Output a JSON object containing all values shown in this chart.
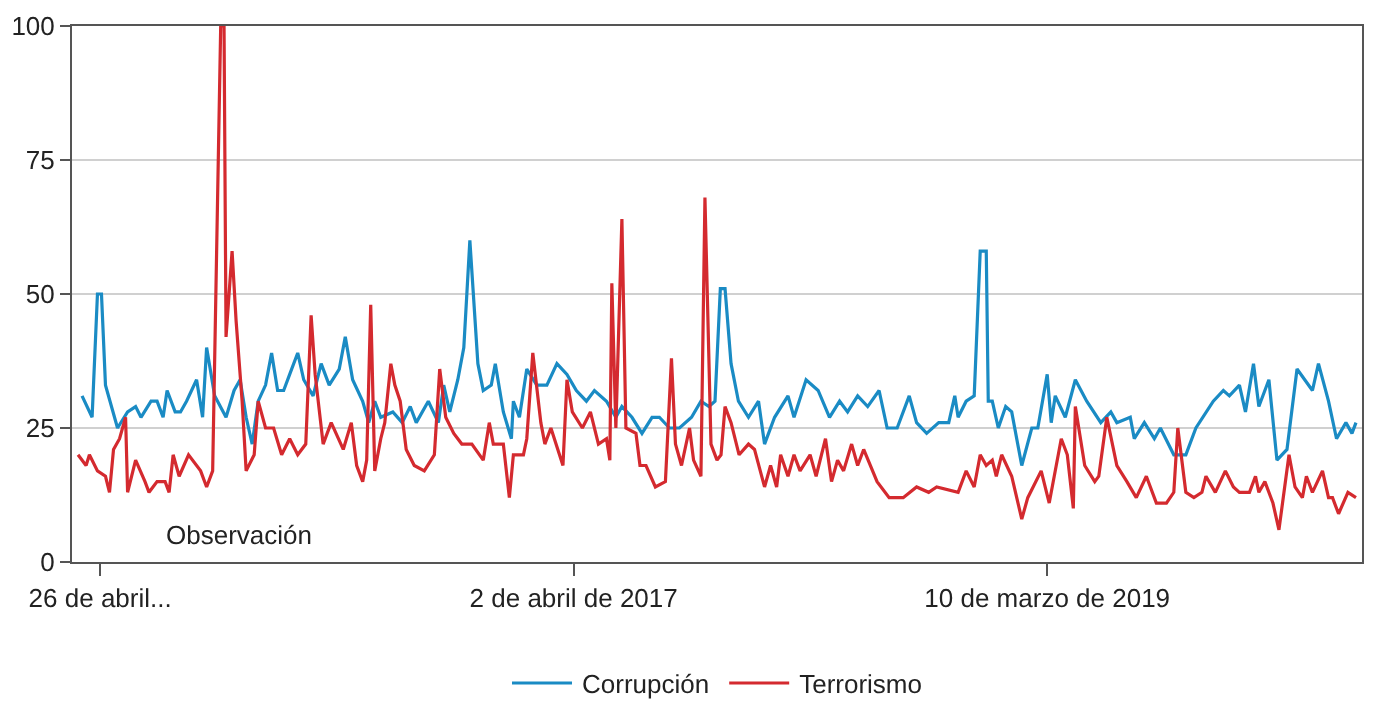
{
  "chart_data": {
    "type": "line",
    "xlim": [
      "2015-03-15",
      "2020-06-22"
    ],
    "xticks": [
      {
        "value": "2015-04-26",
        "label": "26 de abril..."
      },
      {
        "value": "2017-04-02",
        "label": "2 de abril de 2017"
      },
      {
        "value": "2019-03-10",
        "label": "10 de marzo de 2019"
      }
    ],
    "ylim": [
      0,
      100
    ],
    "yticks": [
      0,
      25,
      50,
      75,
      100
    ],
    "grid": "y",
    "legend": "bottom",
    "marker": "none",
    "line_style": "solid",
    "annotations": [
      "Observación"
    ],
    "series": [
      {
        "name": "Corrupción",
        "color": "#1a8bc4",
        "x": [
          "2015-03-30",
          "2015-04-14",
          "2015-04-22",
          "2015-04-28",
          "2015-05-04",
          "2015-05-22",
          "2015-06-06",
          "2015-06-18",
          "2015-06-26",
          "2015-07-11",
          "2015-07-20",
          "2015-07-29",
          "2015-08-04",
          "2015-08-16",
          "2015-08-24",
          "2015-09-02",
          "2015-09-17",
          "2015-09-26",
          "2015-10-02",
          "2015-10-14",
          "2015-10-31",
          "2015-11-12",
          "2015-11-21",
          "2015-11-30",
          "2015-12-09",
          "2015-12-18",
          "2015-12-29",
          "2016-01-07",
          "2016-01-16",
          "2016-01-25",
          "2016-02-03",
          "2016-02-15",
          "2016-02-24",
          "2016-03-09",
          "2016-03-21",
          "2016-04-02",
          "2016-04-17",
          "2016-04-26",
          "2016-05-07",
          "2016-05-22",
          "2016-05-31",
          "2016-06-09",
          "2016-06-18",
          "2016-07-06",
          "2016-07-20",
          "2016-08-01",
          "2016-08-10",
          "2016-08-28",
          "2016-09-12",
          "2016-09-20",
          "2016-09-29",
          "2016-10-11",
          "2016-10-20",
          "2016-10-29",
          "2016-11-10",
          "2016-11-18",
          "2016-11-30",
          "2016-12-06",
          "2016-12-18",
          "2016-12-30",
          "2017-01-02",
          "2017-01-11",
          "2017-01-22",
          "2017-02-06",
          "2017-02-21",
          "2017-03-08",
          "2017-03-23",
          "2017-04-06",
          "2017-04-21",
          "2017-05-03",
          "2017-05-21",
          "2017-06-04",
          "2017-06-13",
          "2017-06-28",
          "2017-07-13",
          "2017-07-28",
          "2017-08-08",
          "2017-08-23",
          "2017-09-07",
          "2017-09-25",
          "2017-10-09",
          "2017-10-21",
          "2017-10-30",
          "2017-11-07",
          "2017-11-14",
          "2017-11-23",
          "2017-12-04",
          "2017-12-19",
          "2018-01-03",
          "2018-01-12",
          "2018-01-27",
          "2018-02-16",
          "2018-02-25",
          "2018-03-15",
          "2018-04-02",
          "2018-04-19",
          "2018-05-04",
          "2018-05-16",
          "2018-05-31",
          "2018-06-15",
          "2018-07-02",
          "2018-07-14",
          "2018-07-29",
          "2018-08-16",
          "2018-08-27",
          "2018-09-11",
          "2018-09-29",
          "2018-10-14",
          "2018-10-23",
          "2018-10-28",
          "2018-11-09",
          "2018-11-21",
          "2018-11-30",
          "2018-12-09",
          "2018-12-12",
          "2018-12-18",
          "2018-12-27",
          "2019-01-07",
          "2019-01-16",
          "2019-01-31",
          "2019-02-15",
          "2019-02-24",
          "2019-03-10",
          "2019-03-16",
          "2019-03-22",
          "2019-04-06",
          "2019-04-21",
          "2019-05-08",
          "2019-05-29",
          "2019-06-13",
          "2019-06-22",
          "2019-07-12",
          "2019-07-18",
          "2019-08-02",
          "2019-08-17",
          "2019-08-26",
          "2019-09-15",
          "2019-10-03",
          "2019-10-18",
          "2019-11-13",
          "2019-11-28",
          "2019-12-07",
          "2019-12-22",
          "2019-12-31",
          "2020-01-12",
          "2020-01-20",
          "2020-02-04",
          "2020-02-16",
          "2020-03-02",
          "2020-03-17",
          "2020-04-09",
          "2020-04-18",
          "2020-05-03",
          "2020-05-15",
          "2020-05-29",
          "2020-06-07",
          "2020-06-13"
        ],
        "values": [
          31,
          27,
          50,
          50,
          33,
          25,
          28,
          29,
          27,
          30,
          30,
          27,
          32,
          28,
          28,
          30,
          34,
          27,
          40,
          31,
          27,
          32,
          34,
          27,
          22,
          30,
          33,
          39,
          32,
          32,
          35,
          39,
          34,
          31,
          37,
          33,
          36,
          42,
          34,
          30,
          26,
          30,
          27,
          28,
          26,
          29,
          26,
          30,
          26,
          33,
          28,
          34,
          40,
          60,
          37,
          32,
          33,
          37,
          28,
          23,
          30,
          27,
          36,
          33,
          33,
          37,
          35,
          32,
          30,
          32,
          30,
          27,
          29,
          27,
          24,
          27,
          27,
          25,
          25,
          27,
          30,
          29,
          30,
          51,
          51,
          37,
          30,
          27,
          30,
          22,
          27,
          31,
          27,
          34,
          32,
          27,
          30,
          28,
          31,
          29,
          32,
          25,
          25,
          31,
          26,
          24,
          26,
          26,
          31,
          27,
          30,
          31,
          58,
          58,
          30,
          30,
          25,
          29,
          28,
          18,
          25,
          25,
          35,
          26,
          31,
          27,
          34,
          30,
          26,
          28,
          26,
          27,
          23,
          26,
          23,
          25,
          20,
          20,
          25,
          30,
          32,
          31,
          33,
          28,
          37,
          29,
          34,
          19,
          21,
          36,
          32,
          37,
          30,
          23,
          26,
          24,
          26
        ]
      },
      {
        "name": "Terrorismo",
        "color": "#d42a2f",
        "x": [
          "2015-03-24",
          "2015-04-05",
          "2015-04-10",
          "2015-04-22",
          "2015-05-04",
          "2015-05-10",
          "2015-05-16",
          "2015-05-25",
          "2015-06-03",
          "2015-06-06",
          "2015-06-18",
          "2015-07-02",
          "2015-07-08",
          "2015-07-20",
          "2015-08-01",
          "2015-08-07",
          "2015-08-13",
          "2015-08-22",
          "2015-09-05",
          "2015-09-23",
          "2015-10-02",
          "2015-10-11",
          "2015-10-23",
          "2015-10-28",
          "2015-10-31",
          "2015-11-09",
          "2015-11-15",
          "2015-11-24",
          "2015-11-30",
          "2015-12-12",
          "2015-12-18",
          "2015-12-29",
          "2016-01-10",
          "2016-01-22",
          "2016-02-03",
          "2016-02-15",
          "2016-02-27",
          "2016-03-06",
          "2016-03-12",
          "2016-03-24",
          "2016-04-05",
          "2016-04-23",
          "2016-05-05",
          "2016-05-13",
          "2016-05-22",
          "2016-05-28",
          "2016-06-03",
          "2016-06-09",
          "2016-06-18",
          "2016-06-24",
          "2016-07-03",
          "2016-07-09",
          "2016-07-17",
          "2016-07-26",
          "2016-08-07",
          "2016-08-22",
          "2016-09-06",
          "2016-09-14",
          "2016-09-23",
          "2016-10-05",
          "2016-10-17",
          "2016-11-01",
          "2016-11-18",
          "2016-11-27",
          "2016-12-03",
          "2016-12-18",
          "2016-12-27",
          "2017-01-02",
          "2017-01-17",
          "2017-01-22",
          "2017-01-31",
          "2017-02-12",
          "2017-02-18",
          "2017-02-27",
          "2017-03-17",
          "2017-03-23",
          "2017-03-31",
          "2017-04-15",
          "2017-04-27",
          "2017-05-09",
          "2017-05-21",
          "2017-05-26",
          "2017-05-29",
          "2017-06-04",
          "2017-06-13",
          "2017-06-19",
          "2017-07-04",
          "2017-07-10",
          "2017-07-19",
          "2017-08-02",
          "2017-08-17",
          "2017-08-26",
          "2017-09-01",
          "2017-09-10",
          "2017-09-22",
          "2017-09-28",
          "2017-10-09",
          "2017-10-15",
          "2017-10-24",
          "2017-11-02",
          "2017-11-08",
          "2017-11-14",
          "2017-11-23",
          "2017-12-05",
          "2017-12-19",
          "2017-12-28",
          "2018-01-12",
          "2018-01-21",
          "2018-01-30",
          "2018-02-05",
          "2018-02-16",
          "2018-02-25",
          "2018-03-06",
          "2018-03-21",
          "2018-03-30",
          "2018-04-13",
          "2018-04-22",
          "2018-05-01",
          "2018-05-10",
          "2018-05-22",
          "2018-05-31",
          "2018-06-09",
          "2018-06-29",
          "2018-07-17",
          "2018-08-07",
          "2018-08-27",
          "2018-09-14",
          "2018-09-26",
          "2018-10-28",
          "2018-11-09",
          "2018-11-21",
          "2018-11-30",
          "2018-12-09",
          "2018-12-18",
          "2018-12-24",
          "2019-01-01",
          "2019-01-16",
          "2019-01-31",
          "2019-02-09",
          "2019-03-01",
          "2019-03-13",
          "2019-03-31",
          "2019-04-09",
          "2019-04-18",
          "2019-04-21",
          "2019-05-05",
          "2019-05-20",
          "2019-05-26",
          "2019-06-07",
          "2019-06-22",
          "2019-07-07",
          "2019-07-21",
          "2019-08-05",
          "2019-08-20",
          "2019-09-04",
          "2019-09-15",
          "2019-09-21",
          "2019-10-03",
          "2019-10-15",
          "2019-10-27",
          "2019-11-02",
          "2019-11-16",
          "2019-12-01",
          "2019-12-13",
          "2019-12-22",
          "2020-01-06",
          "2020-01-15",
          "2020-01-20",
          "2020-01-29",
          "2020-02-10",
          "2020-02-19",
          "2020-03-05",
          "2020-03-14",
          "2020-03-25",
          "2020-03-31",
          "2020-04-09",
          "2020-04-24",
          "2020-05-03",
          "2020-05-09",
          "2020-05-18",
          "2020-06-01",
          "2020-06-13"
        ],
        "values": [
          20,
          18,
          20,
          17,
          16,
          13,
          21,
          23,
          27,
          13,
          19,
          15,
          13,
          15,
          15,
          13,
          20,
          16,
          20,
          17,
          14,
          17,
          100,
          100,
          42,
          58,
          45,
          30,
          17,
          20,
          30,
          25,
          25,
          20,
          23,
          20,
          22,
          46,
          35,
          22,
          26,
          21,
          26,
          18,
          15,
          19,
          48,
          17,
          23,
          26,
          37,
          33,
          30,
          21,
          18,
          17,
          20,
          36,
          27,
          24,
          22,
          22,
          19,
          26,
          22,
          22,
          12,
          20,
          20,
          23,
          39,
          26,
          22,
          25,
          18,
          34,
          28,
          25,
          28,
          22,
          23,
          19,
          52,
          25,
          64,
          25,
          24,
          18,
          18,
          14,
          15,
          38,
          22,
          18,
          25,
          19,
          16,
          68,
          22,
          19,
          20,
          29,
          26,
          20,
          22,
          21,
          14,
          18,
          14,
          20,
          16,
          20,
          17,
          20,
          16,
          23,
          15,
          19,
          17,
          22,
          18,
          21,
          15,
          12,
          12,
          14,
          13,
          14,
          13,
          17,
          14,
          20,
          18,
          19,
          16,
          20,
          16,
          8,
          12,
          17,
          11,
          23,
          20,
          10,
          29,
          18,
          15,
          16,
          27,
          18,
          15,
          12,
          16,
          11,
          11,
          13,
          25,
          13,
          12,
          13,
          16,
          13,
          17,
          14,
          13,
          13,
          16,
          13,
          15,
          11,
          6,
          20,
          14,
          12,
          16,
          13,
          17,
          12,
          12,
          9,
          13,
          12
        ]
      }
    ]
  }
}
